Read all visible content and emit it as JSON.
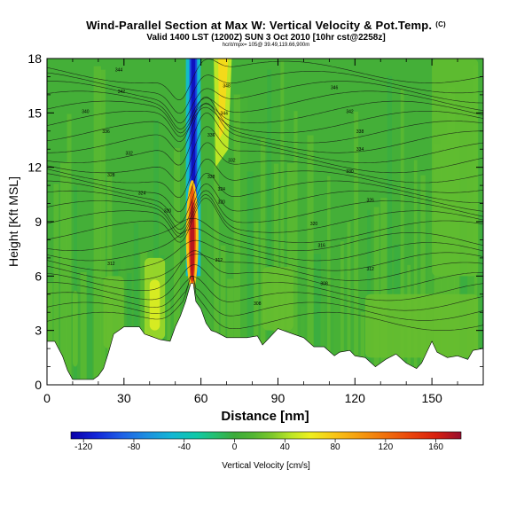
{
  "titles": {
    "main": "Wind-Parallel Section at Max W: Vertical Velocity & Pot.Temp.",
    "copyright": "(C)",
    "valid": "Valid 1400 LST (1200Z) SUN 3 Oct 2010 [10hr cst@2258z]",
    "small": "hcrit/mpx= 105@ 39.49,119.66,900m"
  },
  "chart_data": {
    "type": "heatmap",
    "xlabel": "Distance [nm]",
    "ylabel": "Height [Kft MSL]",
    "xlim": [
      0,
      170
    ],
    "ylim": [
      0,
      18
    ],
    "xticks": [
      0,
      30,
      60,
      90,
      120,
      150
    ],
    "yticks": [
      0,
      3,
      6,
      9,
      12,
      15,
      18
    ],
    "terrain_kft": [
      [
        0,
        2.4
      ],
      [
        3,
        2.4
      ],
      [
        6,
        1.6
      ],
      [
        8,
        0.8
      ],
      [
        10,
        0.3
      ],
      [
        18,
        0.3
      ],
      [
        20,
        0.5
      ],
      [
        22,
        0.9
      ],
      [
        24,
        1.8
      ],
      [
        26,
        2.8
      ],
      [
        30,
        3.2
      ],
      [
        36,
        3.2
      ],
      [
        38,
        2.8
      ],
      [
        40,
        2.7
      ],
      [
        44,
        2.5
      ],
      [
        48,
        2.4
      ],
      [
        50,
        3.2
      ],
      [
        52,
        3.8
      ],
      [
        54,
        4.6
      ],
      [
        56,
        5.6
      ],
      [
        57,
        5.6
      ],
      [
        58,
        4.6
      ],
      [
        60,
        4.2
      ],
      [
        62,
        3.4
      ],
      [
        64,
        3.0
      ],
      [
        66,
        2.9
      ],
      [
        70,
        2.6
      ],
      [
        74,
        2.6
      ],
      [
        78,
        2.6
      ],
      [
        82,
        2.7
      ],
      [
        84,
        2.2
      ],
      [
        86,
        2.5
      ],
      [
        90,
        3.1
      ],
      [
        96,
        2.8
      ],
      [
        100,
        2.6
      ],
      [
        104,
        2.1
      ],
      [
        108,
        2.1
      ],
      [
        112,
        1.6
      ],
      [
        114,
        1.8
      ],
      [
        118,
        1.9
      ],
      [
        120,
        1.6
      ],
      [
        124,
        1.5
      ],
      [
        128,
        1.0
      ],
      [
        132,
        1.4
      ],
      [
        136,
        1.7
      ],
      [
        140,
        1.2
      ],
      [
        144,
        0.9
      ],
      [
        146,
        1.2
      ],
      [
        150,
        2.4
      ],
      [
        152,
        1.8
      ],
      [
        156,
        1.5
      ],
      [
        160,
        1.6
      ],
      [
        164,
        1.4
      ],
      [
        166,
        1.9
      ],
      [
        170,
        2.0
      ]
    ],
    "features": [
      {
        "name": "downdraft",
        "x": [
          55.5,
          58.5
        ],
        "z": [
          6,
          18
        ],
        "w_cm_s": -120
      },
      {
        "name": "updraft-core",
        "x": [
          55.2,
          58
        ],
        "z": [
          5.5,
          11
        ],
        "w_cm_s": 170
      },
      {
        "name": "updraft-upper",
        "x": [
          65,
          72
        ],
        "z": [
          12,
          18
        ],
        "w_cm_s": 70
      }
    ],
    "isentrope_labels": [
      {
        "x": 28,
        "z": 17.4,
        "text": "344"
      },
      {
        "x": 29,
        "z": 16.2,
        "text": "342"
      },
      {
        "x": 15,
        "z": 15.1,
        "text": "340"
      },
      {
        "x": 23,
        "z": 14.0,
        "text": "336"
      },
      {
        "x": 32,
        "z": 12.8,
        "text": "332"
      },
      {
        "x": 25,
        "z": 11.6,
        "text": "328"
      },
      {
        "x": 37,
        "z": 10.6,
        "text": "324"
      },
      {
        "x": 47,
        "z": 9.6,
        "text": "320"
      },
      {
        "x": 25,
        "z": 6.7,
        "text": "312"
      },
      {
        "x": 70,
        "z": 16.5,
        "text": "348"
      },
      {
        "x": 69,
        "z": 15.0,
        "text": "344"
      },
      {
        "x": 64,
        "z": 13.8,
        "text": "336"
      },
      {
        "x": 72,
        "z": 12.4,
        "text": "332"
      },
      {
        "x": 64,
        "z": 11.5,
        "text": "328"
      },
      {
        "x": 68,
        "z": 10.8,
        "text": "324"
      },
      {
        "x": 68,
        "z": 10.1,
        "text": "320"
      },
      {
        "x": 67,
        "z": 6.9,
        "text": "312"
      },
      {
        "x": 82,
        "z": 4.5,
        "text": "308"
      },
      {
        "x": 112,
        "z": 16.4,
        "text": "346"
      },
      {
        "x": 118,
        "z": 15.1,
        "text": "342"
      },
      {
        "x": 122,
        "z": 14.0,
        "text": "338"
      },
      {
        "x": 122,
        "z": 13.0,
        "text": "334"
      },
      {
        "x": 118,
        "z": 11.8,
        "text": "330"
      },
      {
        "x": 126,
        "z": 10.2,
        "text": "326"
      },
      {
        "x": 104,
        "z": 8.9,
        "text": "320"
      },
      {
        "x": 107,
        "z": 7.7,
        "text": "316"
      },
      {
        "x": 126,
        "z": 6.4,
        "text": "312"
      },
      {
        "x": 108,
        "z": 5.6,
        "text": "308"
      }
    ],
    "colorbar": {
      "label": "Vertical Velocity [cm/s]",
      "min": -130,
      "max": 180,
      "ticks": [
        -120,
        -80,
        -40,
        0,
        40,
        80,
        120,
        160
      ],
      "tick_labels": [
        "-120",
        "-80",
        "-40",
        "0",
        "40",
        "80",
        "120",
        "160"
      ],
      "stops": [
        {
          "v": -130,
          "color": "#0b00a8"
        },
        {
          "v": -110,
          "color": "#1225d8"
        },
        {
          "v": -90,
          "color": "#1e5fe6"
        },
        {
          "v": -70,
          "color": "#1d8ee0"
        },
        {
          "v": -50,
          "color": "#12b6d4"
        },
        {
          "v": -30,
          "color": "#10c8a6"
        },
        {
          "v": -15,
          "color": "#26be6e"
        },
        {
          "v": 0,
          "color": "#3dab3a"
        },
        {
          "v": 15,
          "color": "#52b633"
        },
        {
          "v": 30,
          "color": "#7ec82b"
        },
        {
          "v": 45,
          "color": "#bce626"
        },
        {
          "v": 60,
          "color": "#eef01e"
        },
        {
          "v": 80,
          "color": "#f8c416"
        },
        {
          "v": 100,
          "color": "#f59a0f"
        },
        {
          "v": 120,
          "color": "#f0700c"
        },
        {
          "v": 140,
          "color": "#ea440b"
        },
        {
          "v": 160,
          "color": "#d8200e"
        },
        {
          "v": 180,
          "color": "#980e2e"
        }
      ]
    }
  }
}
